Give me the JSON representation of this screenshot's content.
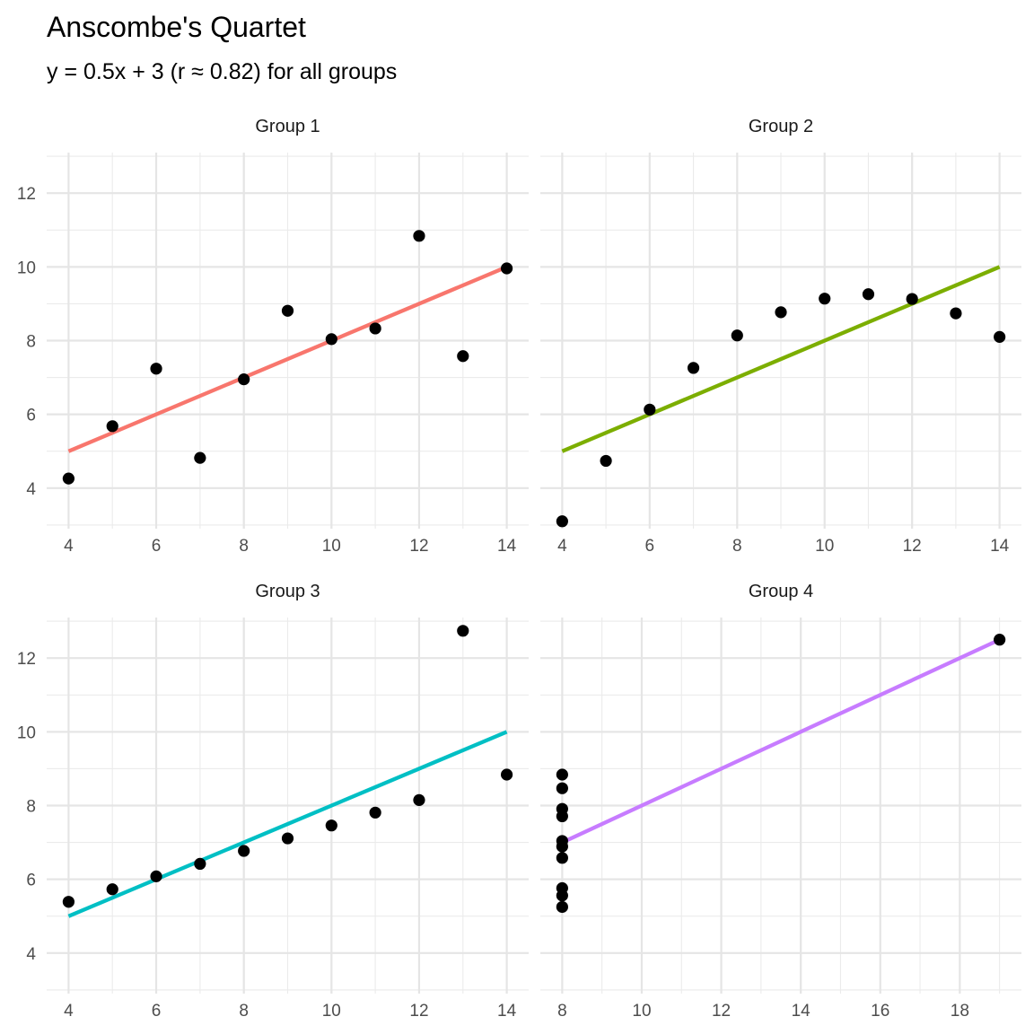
{
  "chart_data": {
    "type": "scatter",
    "title": "Anscombe's Quartet",
    "subtitle": "y = 0.5x + 3 (r ≈ 0.82) for all groups",
    "grid": true,
    "legend": "none",
    "ylim": [
      2.9,
      13.1
    ],
    "y_ticks": [
      4,
      6,
      8,
      10,
      12
    ],
    "panels": [
      {
        "label": "Group 1",
        "color": "#F8766D",
        "xlim": [
          3.5,
          14.5
        ],
        "x_ticks": [
          4,
          6,
          8,
          10,
          12,
          14
        ],
        "x_minor": [
          5,
          7,
          9,
          11,
          13
        ],
        "fit": {
          "slope": 0.5,
          "intercept": 3,
          "x_range": [
            4,
            14
          ]
        },
        "x": [
          10,
          8,
          13,
          9,
          11,
          14,
          6,
          4,
          12,
          7,
          5
        ],
        "y": [
          8.04,
          6.95,
          7.58,
          8.81,
          8.33,
          9.96,
          7.24,
          4.26,
          10.84,
          4.82,
          5.68
        ]
      },
      {
        "label": "Group 2",
        "color": "#7CAE00",
        "xlim": [
          3.5,
          14.5
        ],
        "x_ticks": [
          4,
          6,
          8,
          10,
          12,
          14
        ],
        "x_minor": [
          5,
          7,
          9,
          11,
          13
        ],
        "fit": {
          "slope": 0.5,
          "intercept": 3,
          "x_range": [
            4,
            14
          ]
        },
        "x": [
          10,
          8,
          13,
          9,
          11,
          14,
          6,
          4,
          12,
          7,
          5
        ],
        "y": [
          9.14,
          8.14,
          8.74,
          8.77,
          9.26,
          8.1,
          6.13,
          3.1,
          9.13,
          7.26,
          4.74
        ]
      },
      {
        "label": "Group 3",
        "color": "#00BFC4",
        "xlim": [
          3.5,
          14.5
        ],
        "x_ticks": [
          4,
          6,
          8,
          10,
          12,
          14
        ],
        "x_minor": [
          5,
          7,
          9,
          11,
          13
        ],
        "fit": {
          "slope": 0.5,
          "intercept": 3,
          "x_range": [
            4,
            14
          ]
        },
        "x": [
          10,
          8,
          13,
          9,
          11,
          14,
          6,
          4,
          12,
          7,
          5
        ],
        "y": [
          7.46,
          6.77,
          12.74,
          7.11,
          7.81,
          8.84,
          6.08,
          5.39,
          8.15,
          6.42,
          5.73
        ]
      },
      {
        "label": "Group 4",
        "color": "#C77CFF",
        "xlim": [
          7.45,
          19.55
        ],
        "x_ticks": [
          8,
          10,
          12,
          14,
          16,
          18
        ],
        "x_minor": [
          9,
          11,
          13,
          15,
          17,
          19
        ],
        "fit": {
          "slope": 0.5,
          "intercept": 3,
          "x_range": [
            8,
            19
          ]
        },
        "x": [
          8,
          8,
          8,
          8,
          8,
          8,
          8,
          19,
          8,
          8,
          8
        ],
        "y": [
          6.58,
          5.76,
          7.71,
          8.84,
          8.47,
          7.04,
          5.25,
          12.5,
          5.56,
          7.91,
          6.89
        ]
      }
    ]
  }
}
